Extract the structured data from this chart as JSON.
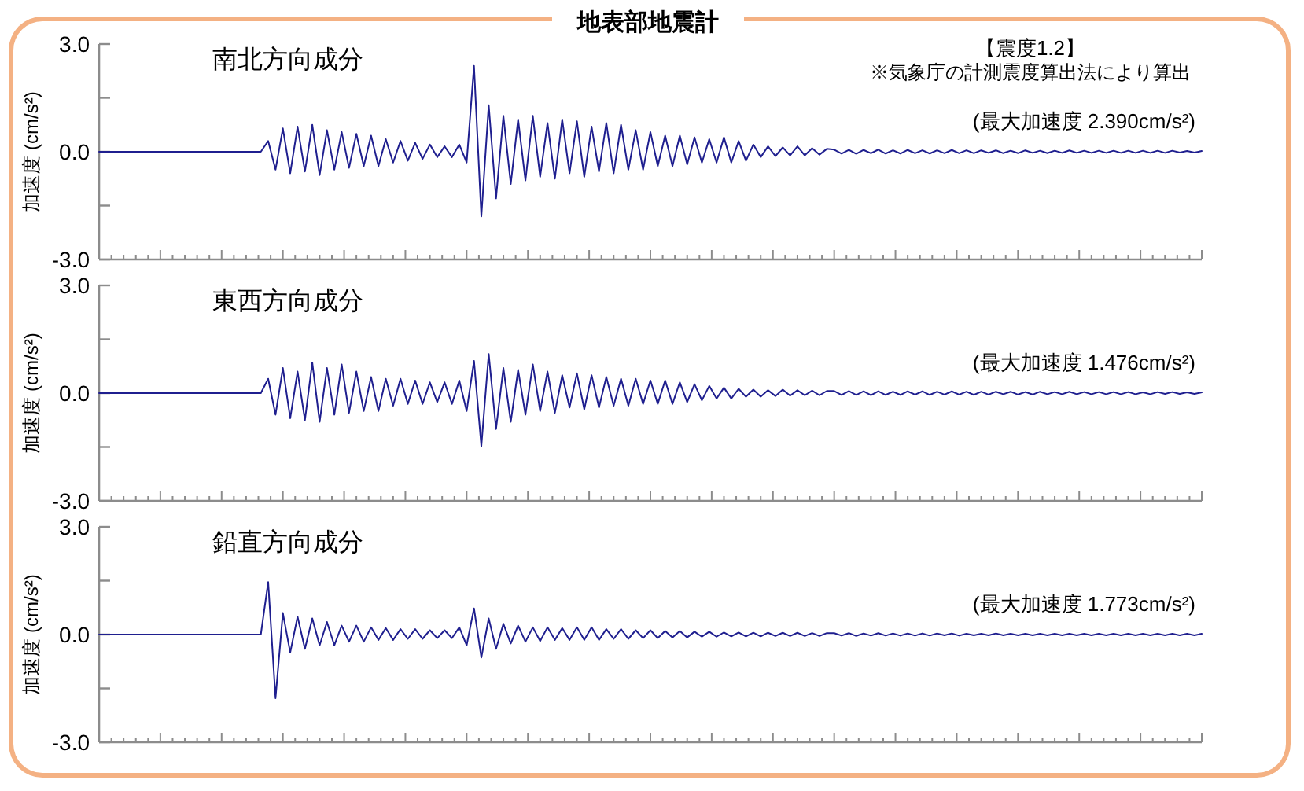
{
  "chart_data": [
    {
      "type": "line",
      "title": "地表部地震計",
      "subtitle": "南北方向成分",
      "ylabel": "加速度 (cm/s²)",
      "annotations": [
        "【震度1.2】",
        "※気象庁の計測震度算出法により算出",
        "(最大加速度 2.390cm/s²)"
      ],
      "tick_labels": "y",
      "ylim": [
        -3,
        3
      ],
      "yticks": [
        {
          "value": 3,
          "label": "3.0"
        },
        {
          "value": 1.5,
          "label": null
        },
        {
          "value": 0,
          "label": "0.0"
        },
        {
          "value": -1.5,
          "label": null
        },
        {
          "value": -3,
          "label": "-3.0"
        }
      ],
      "categories": [
        null,
        null,
        null,
        null,
        null,
        null,
        null,
        null,
        null,
        null,
        null,
        null,
        null,
        null,
        null,
        null,
        null,
        null,
        null,
        null,
        null,
        null,
        null,
        null,
        null,
        null,
        null,
        null,
        null,
        null,
        null,
        null,
        null,
        null,
        null,
        null,
        null,
        null,
        null,
        null,
        null,
        null,
        null,
        null,
        null,
        null,
        null,
        null,
        null,
        null,
        null,
        null,
        null,
        null,
        null,
        null,
        null,
        null,
        null,
        null,
        null,
        null,
        null,
        null,
        null,
        null,
        null,
        null,
        null,
        null,
        null,
        null,
        null,
        null,
        null,
        null,
        null,
        null,
        null,
        null,
        null,
        null,
        null,
        null,
        null,
        null,
        null,
        null,
        null,
        null,
        null,
        null,
        null,
        null,
        null,
        null,
        null,
        null,
        null,
        null,
        null,
        null,
        null,
        null,
        null,
        null,
        null,
        null,
        null,
        null,
        null,
        null,
        null,
        null,
        null,
        null,
        null,
        null,
        null,
        null,
        null,
        null,
        null,
        null,
        null,
        null,
        null,
        null,
        null,
        null,
        null,
        null,
        null,
        null,
        null,
        null,
        null,
        null,
        null,
        null,
        null,
        null,
        null,
        null,
        null,
        null,
        null,
        null,
        null,
        null,
        null
      ],
      "series": [
        {
          "color": "#1f1f8f",
          "values": [
            0,
            0,
            0,
            0,
            0,
            0,
            0,
            0,
            0,
            0,
            0,
            0,
            0,
            0,
            0,
            0,
            0,
            0,
            0,
            0,
            0,
            0,
            0,
            0.3,
            -0.5,
            0.65,
            -0.6,
            0.7,
            -0.55,
            0.75,
            -0.65,
            0.6,
            -0.5,
            0.55,
            -0.45,
            0.5,
            -0.4,
            0.45,
            -0.4,
            0.35,
            -0.3,
            0.3,
            -0.25,
            0.25,
            -0.2,
            0.2,
            -0.15,
            0.15,
            -0.15,
            0.2,
            -0.3,
            2.39,
            -1.8,
            1.3,
            -1.3,
            1.0,
            -0.9,
            0.9,
            -0.8,
            1.0,
            -0.7,
            0.8,
            -0.75,
            0.9,
            -0.6,
            0.85,
            -0.7,
            0.7,
            -0.55,
            0.8,
            -0.6,
            0.75,
            -0.5,
            0.6,
            -0.5,
            0.55,
            -0.4,
            0.45,
            -0.4,
            0.45,
            -0.35,
            0.4,
            -0.3,
            0.35,
            -0.3,
            0.4,
            -0.3,
            0.3,
            -0.25,
            0.2,
            -0.15,
            0.15,
            -0.12,
            0.12,
            -0.1,
            0.15,
            -0.1,
            0.1,
            -0.08,
            0.08,
            0.06,
            -0.05,
            0.05,
            -0.06,
            0.05,
            -0.04,
            0.06,
            -0.05,
            0.04,
            -0.05,
            0.05,
            -0.04,
            0.04,
            -0.05,
            0.04,
            -0.04,
            0.05,
            -0.04,
            0.04,
            -0.04,
            0.04,
            -0.03,
            0.04,
            -0.04,
            0.03,
            -0.04,
            0.04,
            -0.03,
            0.03,
            -0.04,
            0.03,
            -0.03,
            0.04,
            -0.03,
            0.03,
            -0.03,
            0.03,
            -0.03,
            0.03,
            -0.03,
            0.03,
            -0.03,
            0.03,
            -0.03,
            0.03,
            -0.03,
            0.03,
            -0.02,
            0.02,
            -0.02,
            0.02
          ]
        }
      ]
    },
    {
      "type": "line",
      "subtitle": "東西方向成分",
      "ylabel": "加速度 (cm/s²)",
      "annotations": [
        "(最大加速度 1.476cm/s²)"
      ],
      "tick_labels": "y",
      "ylim": [
        -3,
        3
      ],
      "yticks": [
        {
          "value": 3,
          "label": "3.0"
        },
        {
          "value": 1.5,
          "label": null
        },
        {
          "value": 0,
          "label": "0.0"
        },
        {
          "value": -1.5,
          "label": null
        },
        {
          "value": -3,
          "label": "-3.0"
        }
      ],
      "categories": [
        null,
        null,
        null,
        null,
        null,
        null,
        null,
        null,
        null,
        null,
        null,
        null,
        null,
        null,
        null,
        null,
        null,
        null,
        null,
        null,
        null,
        null,
        null,
        null,
        null,
        null,
        null,
        null,
        null,
        null,
        null,
        null,
        null,
        null,
        null,
        null,
        null,
        null,
        null,
        null,
        null,
        null,
        null,
        null,
        null,
        null,
        null,
        null,
        null,
        null,
        null,
        null,
        null,
        null,
        null,
        null,
        null,
        null,
        null,
        null,
        null,
        null,
        null,
        null,
        null,
        null,
        null,
        null,
        null,
        null,
        null,
        null,
        null,
        null,
        null,
        null,
        null,
        null,
        null,
        null,
        null,
        null,
        null,
        null,
        null,
        null,
        null,
        null,
        null,
        null,
        null,
        null,
        null,
        null,
        null,
        null,
        null,
        null,
        null,
        null,
        null,
        null,
        null,
        null,
        null,
        null,
        null,
        null,
        null,
        null,
        null,
        null,
        null,
        null,
        null,
        null,
        null,
        null,
        null,
        null,
        null,
        null,
        null,
        null,
        null,
        null,
        null,
        null,
        null,
        null,
        null,
        null,
        null,
        null,
        null,
        null,
        null,
        null,
        null,
        null,
        null,
        null,
        null,
        null,
        null,
        null,
        null,
        null,
        null,
        null,
        null
      ],
      "series": [
        {
          "color": "#1f1f8f",
          "values": [
            0,
            0,
            0,
            0,
            0,
            0,
            0,
            0,
            0,
            0,
            0,
            0,
            0,
            0,
            0,
            0,
            0,
            0,
            0,
            0,
            0,
            0,
            0,
            0.4,
            -0.6,
            0.7,
            -0.7,
            0.6,
            -0.75,
            0.85,
            -0.8,
            0.7,
            -0.6,
            0.8,
            -0.55,
            0.6,
            -0.5,
            0.45,
            -0.5,
            0.4,
            -0.35,
            0.4,
            -0.3,
            0.35,
            -0.3,
            0.3,
            -0.25,
            0.3,
            -0.3,
            0.35,
            -0.5,
            0.9,
            -1.476,
            1.09,
            -1.0,
            0.7,
            -0.8,
            0.65,
            -0.6,
            0.8,
            -0.5,
            0.6,
            -0.55,
            0.5,
            -0.4,
            0.55,
            -0.45,
            0.5,
            -0.4,
            0.45,
            -0.35,
            0.4,
            -0.35,
            0.4,
            -0.3,
            0.35,
            -0.3,
            0.35,
            -0.3,
            0.3,
            -0.25,
            0.25,
            -0.2,
            0.2,
            -0.15,
            0.15,
            -0.15,
            0.12,
            -0.1,
            0.1,
            -0.1,
            0.08,
            -0.08,
            0.1,
            -0.07,
            0.08,
            -0.06,
            0.07,
            -0.06,
            0.06,
            0.06,
            -0.05,
            0.06,
            -0.05,
            0.05,
            -0.06,
            0.05,
            -0.05,
            0.04,
            -0.05,
            0.05,
            -0.04,
            0.05,
            -0.05,
            0.04,
            -0.04,
            0.05,
            -0.04,
            0.04,
            -0.05,
            0.04,
            -0.04,
            0.04,
            -0.03,
            0.04,
            -0.04,
            0.03,
            -0.04,
            0.04,
            -0.03,
            0.03,
            -0.03,
            0.04,
            -0.03,
            0.03,
            -0.03,
            0.03,
            -0.03,
            0.03,
            -0.03,
            0.03,
            -0.03,
            0.02,
            -0.03,
            0.03,
            -0.02,
            0.03,
            -0.02,
            0.02,
            -0.02,
            0.02
          ]
        }
      ]
    },
    {
      "type": "line",
      "subtitle": "鉛直方向成分",
      "ylabel": "加速度 (cm/s²)",
      "annotations": [
        "(最大加速度 1.773cm/s²)"
      ],
      "tick_labels": "y",
      "ylim": [
        -3,
        3
      ],
      "yticks": [
        {
          "value": 3,
          "label": "3.0"
        },
        {
          "value": 1.5,
          "label": null
        },
        {
          "value": 0,
          "label": "0.0"
        },
        {
          "value": -1.5,
          "label": null
        },
        {
          "value": -3,
          "label": "-3.0"
        }
      ],
      "categories": [
        null,
        null,
        null,
        null,
        null,
        null,
        null,
        null,
        null,
        null,
        null,
        null,
        null,
        null,
        null,
        null,
        null,
        null,
        null,
        null,
        null,
        null,
        null,
        null,
        null,
        null,
        null,
        null,
        null,
        null,
        null,
        null,
        null,
        null,
        null,
        null,
        null,
        null,
        null,
        null,
        null,
        null,
        null,
        null,
        null,
        null,
        null,
        null,
        null,
        null,
        null,
        null,
        null,
        null,
        null,
        null,
        null,
        null,
        null,
        null,
        null,
        null,
        null,
        null,
        null,
        null,
        null,
        null,
        null,
        null,
        null,
        null,
        null,
        null,
        null,
        null,
        null,
        null,
        null,
        null,
        null,
        null,
        null,
        null,
        null,
        null,
        null,
        null,
        null,
        null,
        null,
        null,
        null,
        null,
        null,
        null,
        null,
        null,
        null,
        null,
        null,
        null,
        null,
        null,
        null,
        null,
        null,
        null,
        null,
        null,
        null,
        null,
        null,
        null,
        null,
        null,
        null,
        null,
        null,
        null,
        null,
        null,
        null,
        null,
        null,
        null,
        null,
        null,
        null,
        null,
        null,
        null,
        null,
        null,
        null,
        null,
        null,
        null,
        null,
        null,
        null,
        null,
        null,
        null,
        null,
        null,
        null,
        null,
        null,
        null,
        null
      ],
      "series": [
        {
          "color": "#1f1f8f",
          "values": [
            0,
            0,
            0,
            0,
            0,
            0,
            0,
            0,
            0,
            0,
            0,
            0,
            0,
            0,
            0,
            0,
            0,
            0,
            0,
            0,
            0,
            0,
            0,
            1.46,
            -1.773,
            0.6,
            -0.5,
            0.5,
            -0.4,
            0.45,
            -0.3,
            0.35,
            -0.3,
            0.25,
            -0.2,
            0.25,
            -0.2,
            0.2,
            -0.15,
            0.18,
            -0.15,
            0.15,
            -0.12,
            0.15,
            -0.12,
            0.12,
            -0.1,
            0.12,
            -0.1,
            0.2,
            -0.3,
            0.73,
            -0.64,
            0.45,
            -0.4,
            0.3,
            -0.25,
            0.25,
            -0.2,
            0.2,
            -0.18,
            0.2,
            -0.15,
            0.18,
            -0.15,
            0.2,
            -0.15,
            0.2,
            -0.15,
            0.15,
            -0.12,
            0.15,
            -0.12,
            0.12,
            -0.1,
            0.12,
            -0.1,
            0.1,
            -0.08,
            0.1,
            -0.08,
            0.08,
            -0.06,
            0.08,
            -0.06,
            0.06,
            -0.05,
            0.06,
            -0.05,
            0.05,
            -0.05,
            0.05,
            -0.04,
            0.05,
            -0.04,
            0.05,
            -0.04,
            0.04,
            -0.04,
            0.04,
            0.04,
            -0.03,
            0.04,
            -0.04,
            0.03,
            -0.03,
            0.04,
            -0.03,
            0.03,
            -0.03,
            0.03,
            -0.03,
            0.03,
            -0.03,
            0.03,
            -0.02,
            0.03,
            -0.03,
            0.02,
            -0.02,
            0.02,
            -0.02,
            0.03,
            -0.02,
            0.02,
            -0.02,
            0.02,
            -0.02,
            0.02,
            -0.02,
            0.02,
            -0.02,
            0.02,
            -0.02,
            0.02,
            -0.02,
            0.02,
            -0.02,
            0.02,
            -0.02,
            0.02,
            -0.02,
            0.02,
            -0.02,
            0.02,
            -0.02,
            0.02,
            -0.02,
            0.02,
            -0.02,
            0.02
          ]
        }
      ]
    }
  ]
}
